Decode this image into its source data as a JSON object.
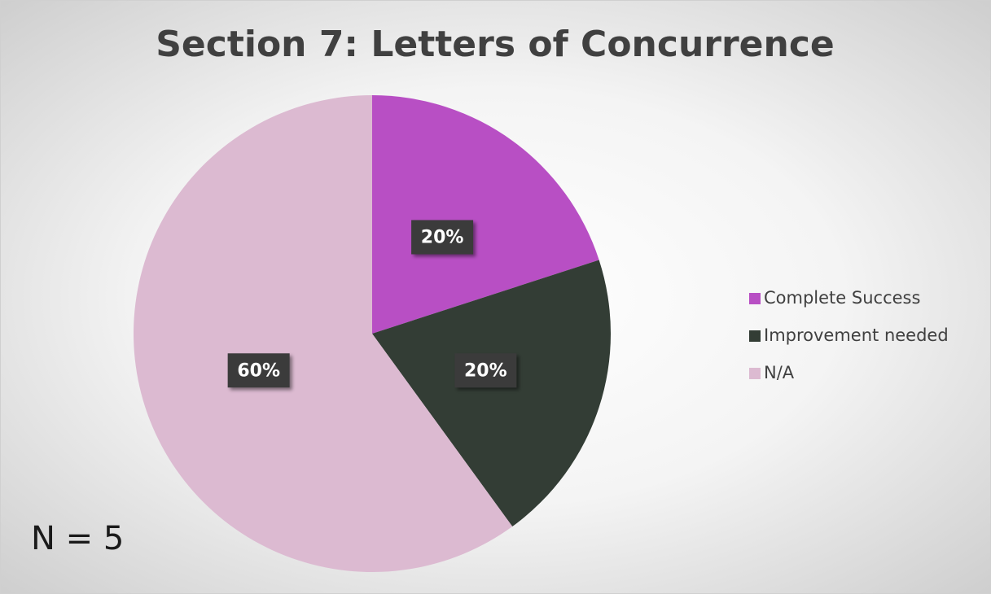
{
  "chart_data": {
    "type": "pie",
    "title": "Section 7: Letters of Concurrence",
    "categories": [
      "Complete Success",
      "Improvement needed",
      "N/A"
    ],
    "values": [
      20,
      20,
      60
    ],
    "value_labels": [
      "20%",
      "20%",
      "60%"
    ],
    "colors": [
      "#b84fc4",
      "#333d35",
      "#dcbad1"
    ],
    "legend": "right",
    "annotation": "N = 5"
  }
}
